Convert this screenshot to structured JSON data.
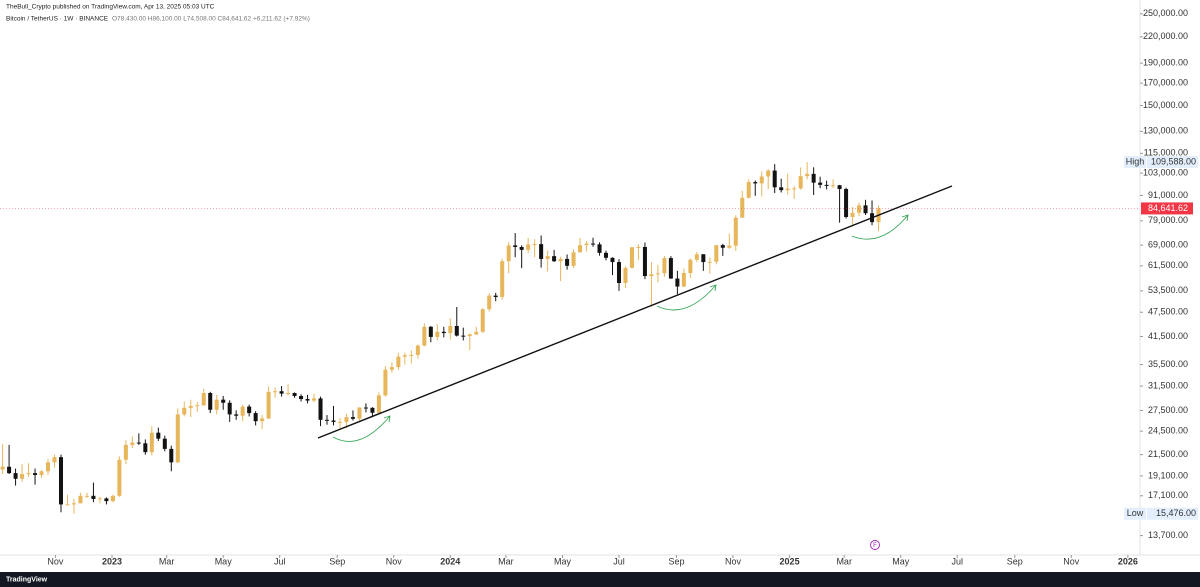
{
  "header": {
    "publisher": "TheBull_Crypto published on TradingView.com, Apr 13, 2025 05:03 UTC",
    "symbol": "Bitcoin / TetherUS · 1W · BINANCE",
    "ohlc": "O78,430.00 H86,100.00 L74,508.00 C84,641.62 +6,211.62 (+7.92%)"
  },
  "footer": {
    "logo": "TradingView"
  },
  "chart_data": {
    "type": "candlestick",
    "log_scale": true,
    "up_color": "#e8b65a",
    "down_color": "#131313",
    "open": [
      19800,
      20100,
      19400,
      18800,
      19300,
      19400,
      19200,
      19600,
      20600,
      21200,
      16300,
      16300,
      16400,
      17100,
      17100,
      16800,
      16850,
      16600,
      17100,
      20900,
      22700,
      23000,
      22900,
      21800,
      24300,
      23500,
      22200,
      20600,
      26900,
      27900,
      28200,
      28300,
      30300,
      27600,
      29200,
      28700,
      26900,
      26700,
      28100,
      27100,
      25900,
      26300,
      30500,
      30600,
      30200,
      30300,
      29800,
      29300,
      29050,
      29400,
      26100,
      26000,
      25800,
      25800,
      26500,
      26250,
      27950,
      27900,
      27150,
      29900,
      34500,
      35000,
      37100,
      37400,
      37450,
      39450,
      43800,
      41400,
      42600,
      42300,
      44000,
      41700,
      41600,
      42000,
      42600,
      48300,
      52100,
      51700,
      63100,
      68900,
      68300,
      67200,
      69300,
      69400,
      63900,
      64900,
      63100,
      63900,
      61500,
      66300,
      69000,
      69600,
      69300,
      66100,
      64300,
      62800,
      55900,
      60800,
      68200,
      68300,
      58100,
      58700,
      59000,
      64200,
      57300,
      54800,
      59100,
      63600,
      65600,
      62800,
      62900,
      69000,
      68000,
      68800,
      80400,
      89800,
      98000,
      97300,
      101100,
      104500,
      95200,
      93700,
      94500,
      94600,
      101300,
      102600,
      97700,
      96500,
      96100,
      96300,
      94300,
      80700,
      82600,
      86100,
      82400,
      78430
    ],
    "high": [
      22800,
      22700,
      19900,
      20400,
      20500,
      19900,
      19700,
      21000,
      21500,
      21500,
      17200,
      16800,
      17400,
      17400,
      18400,
      17000,
      16950,
      17200,
      21300,
      23300,
      23800,
      24200,
      23400,
      25200,
      25000,
      23900,
      22600,
      27800,
      28900,
      29200,
      28800,
      31000,
      30500,
      30000,
      29800,
      29100,
      27500,
      28400,
      28400,
      27400,
      26800,
      31400,
      31300,
      31500,
      31800,
      30400,
      30100,
      30000,
      30200,
      29700,
      26800,
      28200,
      26400,
      27000,
      27500,
      28000,
      28600,
      28000,
      30400,
      35200,
      35900,
      37900,
      37900,
      38400,
      39700,
      44700,
      44000,
      44400,
      43800,
      45900,
      48900,
      43600,
      42200,
      43800,
      48600,
      52800,
      52900,
      64000,
      70200,
      73800,
      68900,
      71800,
      71300,
      72800,
      66900,
      67200,
      64700,
      65500,
      67400,
      71900,
      70600,
      71900,
      70100,
      66900,
      64500,
      63800,
      61400,
      68300,
      69400,
      70000,
      62700,
      61800,
      65000,
      64900,
      59800,
      60600,
      64100,
      66500,
      65600,
      64400,
      69000,
      69500,
      73600,
      81500,
      93400,
      99600,
      98900,
      104000,
      105300,
      108300,
      99900,
      102700,
      95900,
      106300,
      109588,
      106400,
      101000,
      98800,
      99500,
      96500,
      95000,
      85300,
      87500,
      88800,
      88500,
      86100
    ],
    "low": [
      19300,
      19300,
      18100,
      18500,
      19000,
      18200,
      18900,
      19200,
      20000,
      15600,
      16200,
      15476,
      16400,
      16900,
      16500,
      16400,
      16300,
      16500,
      17000,
      20400,
      22300,
      22700,
      21500,
      21400,
      23200,
      21900,
      19600,
      20500,
      26600,
      26500,
      27300,
      28200,
      27100,
      26900,
      27600,
      25800,
      26100,
      25900,
      26600,
      25300,
      24800,
      26200,
      29500,
      29700,
      29900,
      29500,
      28900,
      28600,
      28800,
      25200,
      25400,
      25300,
      24900,
      24900,
      26000,
      26000,
      27200,
      26500,
      26900,
      29700,
      33900,
      34500,
      35500,
      35700,
      36700,
      39300,
      40200,
      40600,
      41300,
      40800,
      41500,
      40600,
      38500,
      41800,
      42300,
      47700,
      50500,
      50900,
      59000,
      64500,
      60700,
      66000,
      64500,
      60900,
      59600,
      62800,
      56500,
      60200,
      60700,
      66200,
      66600,
      68400,
      65100,
      63400,
      58400,
      53500,
      54300,
      60600,
      63500,
      57100,
      49000,
      56100,
      57800,
      57200,
      52500,
      54600,
      57500,
      62700,
      59800,
      58900,
      62000,
      65000,
      67600,
      66800,
      80300,
      89500,
      90800,
      90500,
      94200,
      92200,
      92500,
      91300,
      89300,
      94000,
      99500,
      91200,
      94700,
      94100,
      94900,
      78200,
      80000,
      76600,
      81100,
      81600,
      77100,
      74508
    ],
    "close": [
      20100,
      19400,
      18800,
      19300,
      19400,
      19200,
      19600,
      20600,
      21200,
      16300,
      16300,
      16400,
      17100,
      17100,
      16800,
      16850,
      16600,
      17100,
      20900,
      22700,
      23000,
      22900,
      21800,
      24300,
      23500,
      22200,
      20600,
      26900,
      27900,
      28200,
      28300,
      30300,
      27600,
      29200,
      28700,
      26900,
      26700,
      28100,
      27100,
      25900,
      26300,
      30500,
      30600,
      30200,
      30300,
      29800,
      29300,
      29050,
      29400,
      26100,
      26000,
      25800,
      25800,
      26500,
      26250,
      27950,
      27900,
      27150,
      29900,
      34500,
      35000,
      37100,
      37400,
      37450,
      39450,
      43800,
      41400,
      42600,
      42300,
      44000,
      41700,
      41600,
      42000,
      42600,
      48300,
      52100,
      51700,
      63100,
      68900,
      68300,
      67200,
      69300,
      69400,
      63900,
      64900,
      63100,
      63900,
      61500,
      66300,
      69000,
      69600,
      69300,
      66100,
      64300,
      62800,
      55900,
      60800,
      68200,
      68300,
      58100,
      58700,
      59000,
      64200,
      57300,
      54800,
      59100,
      63600,
      65600,
      62800,
      62900,
      69000,
      68000,
      68800,
      80400,
      89800,
      98000,
      97300,
      101100,
      104500,
      95200,
      93700,
      94500,
      94600,
      101300,
      102600,
      97700,
      96500,
      96100,
      96300,
      94300,
      80700,
      82600,
      86100,
      82400,
      78430,
      84641.62
    ],
    "xlim": [
      -0.4,
      175.3
    ],
    "xticks": [
      {
        "value": 8.14,
        "label": "Nov"
      },
      {
        "value": 16.86,
        "label": "2023"
      },
      {
        "value": 25.29,
        "label": "Mar"
      },
      {
        "value": 34.0,
        "label": "May"
      },
      {
        "value": 42.71,
        "label": "Jul"
      },
      {
        "value": 51.57,
        "label": "Sep"
      },
      {
        "value": 60.29,
        "label": "Nov"
      },
      {
        "value": 69.0,
        "label": "2024"
      },
      {
        "value": 77.57,
        "label": "Mar"
      },
      {
        "value": 86.29,
        "label": "May"
      },
      {
        "value": 95.0,
        "label": "Jul"
      },
      {
        "value": 103.86,
        "label": "Sep"
      },
      {
        "value": 112.57,
        "label": "Nov"
      },
      {
        "value": 121.29,
        "label": "2025"
      },
      {
        "value": 129.71,
        "label": "Mar"
      },
      {
        "value": 138.43,
        "label": "May"
      },
      {
        "value": 147.14,
        "label": "Jul"
      },
      {
        "value": 156.0,
        "label": "Sep"
      },
      {
        "value": 164.71,
        "label": "Nov"
      },
      {
        "value": 173.43,
        "label": "2026"
      }
    ],
    "ylim": [
      12300,
      270000
    ],
    "yticks": [
      {
        "value": 250000,
        "label": "250,000.00"
      },
      {
        "value": 220000,
        "label": "220,000.00"
      },
      {
        "value": 190000,
        "label": "190,000.00"
      },
      {
        "value": 170000,
        "label": "170,000.00"
      },
      {
        "value": 150000,
        "label": "150,000.00"
      },
      {
        "value": 130000,
        "label": "130,000.00"
      },
      {
        "value": 115000,
        "label": "115,000.00"
      },
      {
        "value": 103000,
        "label": "103,000.00"
      },
      {
        "value": 91000,
        "label": "91,000.00"
      },
      {
        "value": 79000,
        "label": "79,000.00"
      },
      {
        "value": 69000,
        "label": "69,000.00"
      },
      {
        "value": 61500,
        "label": "61,500.00"
      },
      {
        "value": 53500,
        "label": "53,500.00"
      },
      {
        "value": 47500,
        "label": "47,500.00"
      },
      {
        "value": 41500,
        "label": "41,500.00"
      },
      {
        "value": 35500,
        "label": "35,500.00"
      },
      {
        "value": 31500,
        "label": "31,500.00"
      },
      {
        "value": 27500,
        "label": "27,500.00"
      },
      {
        "value": 24500,
        "label": "24,500.00"
      },
      {
        "value": 21500,
        "label": "21,500.00"
      },
      {
        "value": 19100,
        "label": "19,100.00"
      },
      {
        "value": 17100,
        "label": "17,100.00"
      },
      {
        "value": 13700,
        "label": "13,700.00"
      }
    ],
    "high_marker": {
      "name": "High",
      "value": 109588,
      "label": "109,588.00"
    },
    "low_marker": {
      "name": "Low",
      "value": 15476,
      "label": "15,476.00"
    },
    "last_price": {
      "value": 84641.62,
      "label": "84,641.62",
      "color": "#f23645"
    }
  }
}
